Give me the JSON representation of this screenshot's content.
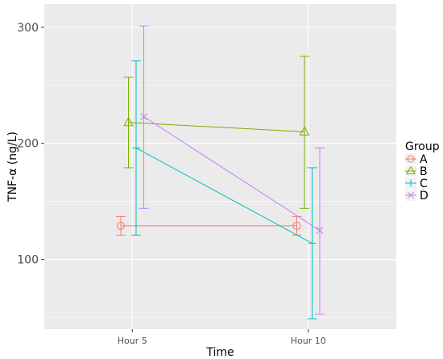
{
  "chart_data": {
    "type": "line",
    "xlabel": "Time",
    "ylabel": "TNF-α (ng/L)",
    "categories": [
      "Hour 5",
      "Hour 10"
    ],
    "ylim": [
      40,
      320
    ],
    "yticks": [
      100,
      200,
      300
    ],
    "grid": true,
    "legend": {
      "title": "Group",
      "position": "right"
    },
    "series": [
      {
        "name": "A",
        "color": "#F8766D",
        "marker": "circle",
        "values": [
          129,
          129
        ],
        "error_low": [
          121,
          121
        ],
        "error_high": [
          137,
          137
        ]
      },
      {
        "name": "B",
        "color": "#7CAE00",
        "marker": "triangle",
        "values": [
          218,
          210
        ],
        "error_low": [
          179,
          144
        ],
        "error_high": [
          257,
          275
        ]
      },
      {
        "name": "C",
        "color": "#00BFC4",
        "marker": "plus",
        "values": [
          196,
          114
        ],
        "error_low": [
          121,
          49
        ],
        "error_high": [
          271,
          179
        ]
      },
      {
        "name": "D",
        "color": "#C77CFF",
        "marker": "x",
        "values": [
          223,
          125
        ],
        "error_low": [
          144,
          53
        ],
        "error_high": [
          301,
          196
        ]
      }
    ]
  }
}
